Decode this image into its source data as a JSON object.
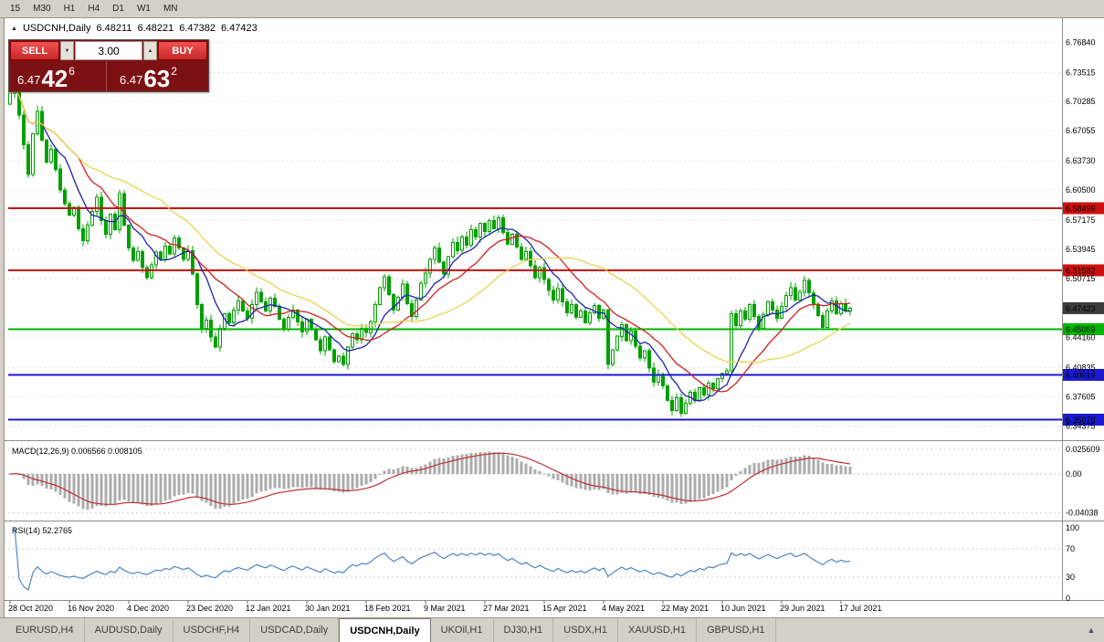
{
  "toolbar": {
    "timeframes": [
      "15",
      "M30",
      "H1",
      "H4",
      "D1",
      "W1",
      "MN"
    ]
  },
  "header": {
    "collapse_icon": "▲",
    "symbol": "USDCNH,Daily",
    "open": "6.48211",
    "high": "6.48221",
    "low": "6.47382",
    "close": "6.47423"
  },
  "trade_panel": {
    "sell_label": "SELL",
    "buy_label": "BUY",
    "volume": "3.00",
    "spin_down_icon": "▼",
    "spin_up_icon": "▲",
    "sell_price": {
      "base": "6.47",
      "big": "42",
      "sup": "6"
    },
    "buy_price": {
      "base": "6.47",
      "big": "63",
      "sup": "2"
    }
  },
  "chart_data": {
    "type": "candlestick",
    "symbol": "USDCNH",
    "timeframe": "Daily",
    "price_range": {
      "top": 6.79,
      "bottom": 6.33
    },
    "price_axis_ticks": [
      "6.76840",
      "6.73515",
      "6.70285",
      "6.67055",
      "6.63730",
      "6.60500",
      "6.57175",
      "6.53945",
      "6.50715",
      "6.44160",
      "6.40835",
      "6.37605",
      "6.34375"
    ],
    "current_price": {
      "value": 6.47423,
      "label": "6.47423",
      "color": "#3d3d3d"
    },
    "hlines": [
      {
        "price": 6.58499,
        "label": "6.58499",
        "color": "#cc1111"
      },
      {
        "price": 6.51582,
        "label": "6.51582",
        "color": "#cc1111"
      },
      {
        "price": 6.45059,
        "label": "6.45059",
        "color": "#00b400"
      },
      {
        "price": 6.40019,
        "label": "6.40019",
        "color": "#1a1ad0"
      },
      {
        "price": 6.35078,
        "label": "6.35078",
        "color": "#1a1ad0"
      }
    ],
    "moving_averages": [
      {
        "period": 8,
        "color": "#2020b0"
      },
      {
        "period": 16,
        "color": "#d02020"
      },
      {
        "period": 34,
        "color": "#e8d44d"
      }
    ],
    "candle_colors": {
      "bull_fill": "#ffffff",
      "bear_fill": "#00a000",
      "outline": "#00a000"
    },
    "x_labels": [
      "28 Oct 2020",
      "16 Nov 2020",
      "4 Dec 2020",
      "23 Dec 2020",
      "12 Jan 2021",
      "30 Jan 2021",
      "18 Feb 2021",
      "9 Mar 2021",
      "27 Mar 2021",
      "15 Apr 2021",
      "4 May 2021",
      "22 May 2021",
      "10 Jun 2021",
      "29 Jun 2021",
      "17 Jul 2021"
    ],
    "x_label_bars": [
      0,
      13,
      26,
      39,
      52,
      65,
      78,
      91,
      104,
      117,
      130,
      143,
      156,
      169,
      182
    ],
    "closes": [
      6.712,
      6.726,
      6.688,
      6.655,
      6.622,
      6.667,
      6.692,
      6.66,
      6.636,
      6.65,
      6.628,
      6.605,
      6.59,
      6.577,
      6.586,
      6.562,
      6.549,
      6.566,
      6.581,
      6.597,
      6.571,
      6.556,
      6.578,
      6.561,
      6.601,
      6.566,
      6.541,
      6.527,
      6.537,
      6.519,
      6.508,
      6.522,
      6.536,
      6.528,
      6.543,
      6.534,
      6.552,
      6.541,
      6.528,
      6.538,
      6.512,
      6.478,
      6.452,
      6.461,
      6.442,
      6.431,
      6.452,
      6.468,
      6.458,
      6.472,
      6.482,
      6.471,
      6.463,
      6.478,
      6.492,
      6.481,
      6.471,
      6.485,
      6.476,
      6.462,
      6.451,
      6.464,
      6.472,
      6.459,
      6.448,
      6.462,
      6.451,
      6.439,
      6.427,
      6.442,
      6.428,
      6.415,
      6.421,
      6.412,
      6.431,
      6.446,
      6.439,
      6.452,
      6.447,
      6.459,
      6.478,
      6.497,
      6.509,
      6.489,
      6.472,
      6.486,
      6.501,
      6.479,
      6.465,
      6.483,
      6.502,
      6.513,
      6.528,
      6.541,
      6.525,
      6.512,
      6.531,
      6.547,
      6.538,
      6.553,
      6.544,
      6.561,
      6.553,
      6.568,
      6.559,
      6.571,
      6.562,
      6.574,
      6.558,
      6.545,
      6.556,
      6.542,
      6.528,
      6.537,
      6.521,
      6.508,
      6.519,
      6.506,
      6.494,
      6.483,
      6.496,
      6.481,
      6.469,
      6.478,
      6.464,
      6.471,
      6.458,
      6.469,
      6.477,
      6.463,
      6.472,
      6.412,
      6.428,
      6.443,
      6.456,
      6.438,
      6.449,
      6.432,
      6.419,
      6.427,
      6.408,
      6.392,
      6.401,
      6.388,
      6.372,
      6.361,
      6.375,
      6.358,
      6.369,
      6.381,
      6.372,
      6.386,
      6.378,
      6.391,
      6.385,
      6.396,
      6.402,
      6.405,
      6.468,
      6.455,
      6.471,
      6.462,
      6.478,
      6.465,
      6.452,
      6.467,
      6.481,
      6.472,
      6.463,
      6.476,
      6.488,
      6.497,
      6.483,
      6.492,
      6.505,
      6.491,
      6.478,
      6.466,
      6.453,
      6.471,
      6.482,
      6.468,
      6.479,
      6.471,
      6.474
    ],
    "macd": {
      "label": "MACD(12,26,9)",
      "values": "0.006566 0.008105",
      "fast": 12,
      "slow": 26,
      "signal": 9,
      "axis": [
        {
          "v": 0.025609,
          "label": "0.025609"
        },
        {
          "v": 0,
          "label": "0.00"
        },
        {
          "v": -0.04038,
          "label": "-0.04038"
        }
      ],
      "hist_color": "#ababab",
      "signal_color": "#c03030"
    },
    "rsi": {
      "label": "RSI(14)",
      "value": "52.2765",
      "period": 14,
      "color": "#3f7cc4",
      "axis": [
        {
          "v": 100,
          "label": "100"
        },
        {
          "v": 70,
          "label": "70"
        },
        {
          "v": 30,
          "label": "30"
        },
        {
          "v": 0,
          "label": "0"
        }
      ],
      "levels": [
        70,
        30
      ]
    }
  },
  "tabs": {
    "items": [
      "EURUSD,H4",
      "AUDUSD,Daily",
      "USDCHF,H4",
      "USDCAD,Daily",
      "USDCNH,Daily",
      "UKOil,H1",
      "DJ30,H1",
      "USDX,H1",
      "XAUUSD,H1",
      "GBPUSD,H1"
    ],
    "active_index": 4
  },
  "tabbar": {
    "scroll_icon": "▲"
  }
}
